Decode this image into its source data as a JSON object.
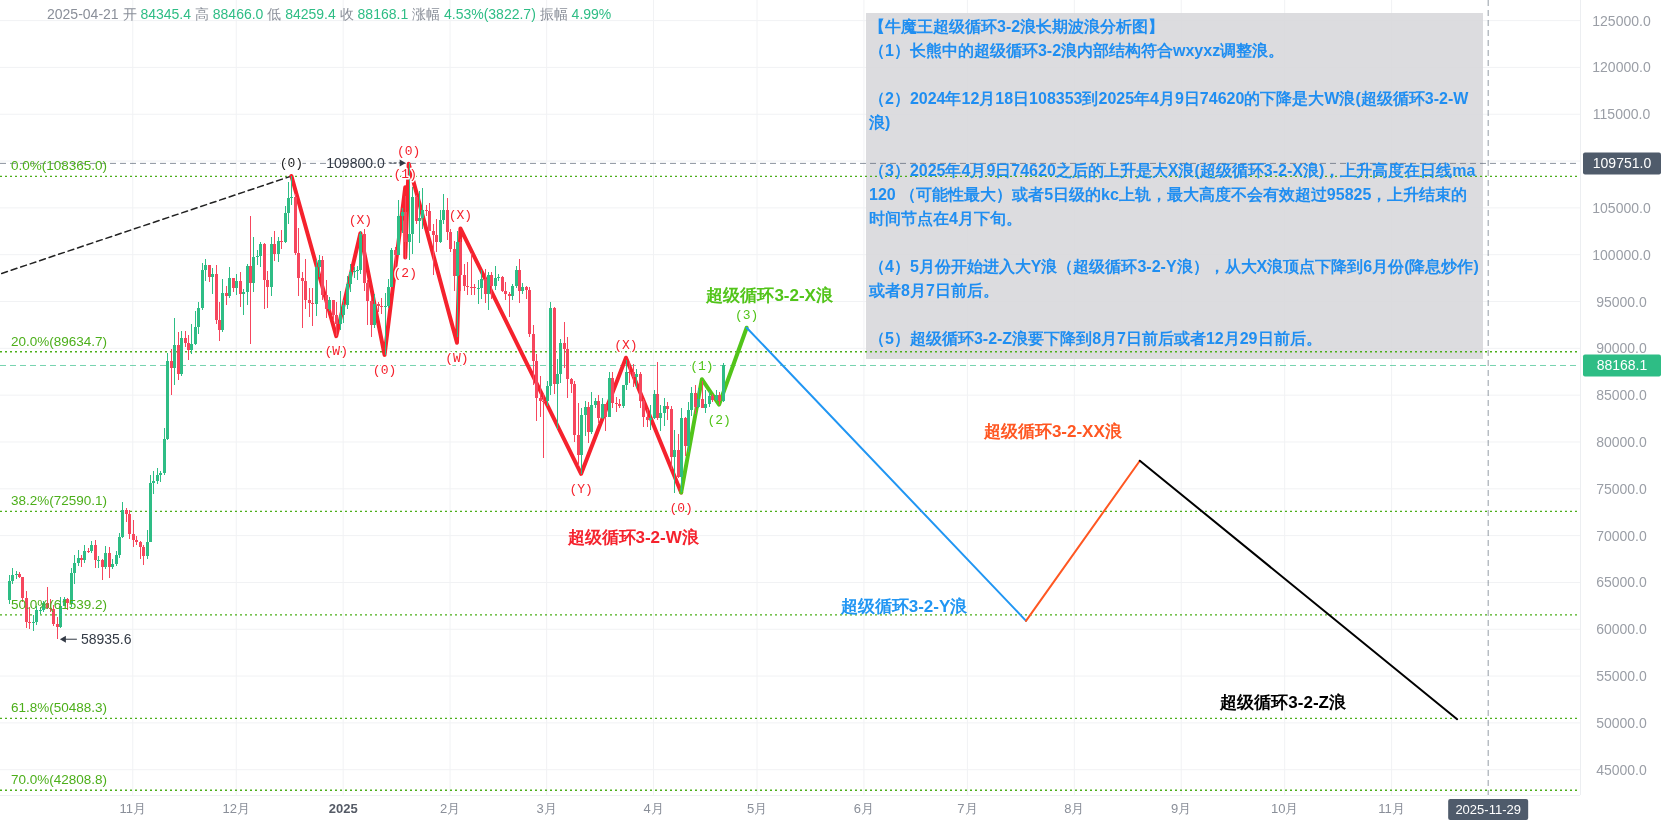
{
  "chart_data": {
    "type": "candlestick",
    "title": "【牛魔王超级循环3-2浪长期波浪分析图】",
    "subtitle": "2025-04-21 开 84345.4 高 88466.0 低 84259.4 收 88168.1 涨幅 4.53%(3822.7) 振幅 4.99%",
    "xlim": [
      "2024-09-23T12:00",
      "2025-12-25T15:00"
    ],
    "ylim": [
      42300,
      127200
    ],
    "xticks": [
      {
        "value": "2024-11-01",
        "label": "11月"
      },
      {
        "value": "2024-12-01",
        "label": "12月"
      },
      {
        "value": "2025-01-01",
        "label": "2025"
      },
      {
        "value": "2025-02-01",
        "label": "2月"
      },
      {
        "value": "2025-03-01",
        "label": "3月"
      },
      {
        "value": "2025-04-01",
        "label": "4月"
      },
      {
        "value": "2025-05-01",
        "label": "5月"
      },
      {
        "value": "2025-06-01",
        "label": "6月"
      },
      {
        "value": "2025-07-01",
        "label": "7月"
      },
      {
        "value": "2025-08-01",
        "label": "8月"
      },
      {
        "value": "2025-09-01",
        "label": "9月"
      },
      {
        "value": "2025-10-01",
        "label": "10月"
      },
      {
        "value": "2025-11-01",
        "label": "11月"
      }
    ],
    "yticks": [
      {
        "value": 45000,
        "label": "45000.0"
      },
      {
        "value": 50000,
        "label": "50000.0"
      },
      {
        "value": 55000,
        "label": "55000.0"
      },
      {
        "value": 60000,
        "label": "60000.0"
      },
      {
        "value": 65000,
        "label": "65000.0"
      },
      {
        "value": 70000,
        "label": "70000.0"
      },
      {
        "value": 75000,
        "label": "75000.0"
      },
      {
        "value": 80000,
        "label": "80000.0"
      },
      {
        "value": 85000,
        "label": "85000.0"
      },
      {
        "value": 90000,
        "label": "90000.0"
      },
      {
        "value": 95000,
        "label": "95000.0"
      },
      {
        "value": 100000,
        "label": "100000.0"
      },
      {
        "value": 105000,
        "label": "105000.0"
      },
      {
        "value": 110000,
        "label": null
      },
      {
        "value": 115000,
        "label": "115000.0"
      },
      {
        "value": 120000,
        "label": "120000.0"
      },
      {
        "value": 125000,
        "label": "125000.0"
      }
    ],
    "grid": true,
    "series": [
      {
        "type": "candlestick",
        "color": "#2ebd85",
        "x": [
          "2024-09-26",
          "2024-09-27",
          "2024-09-28",
          "2024-10-03",
          "2024-10-04",
          "2024-10-05",
          "2024-10-06",
          "2024-10-11",
          "2024-10-12",
          "2024-10-14",
          "2024-10-15",
          "2024-10-16",
          "2024-10-18",
          "2024-10-20",
          "2024-10-22",
          "2024-10-24",
          "2024-10-26",
          "2024-10-27",
          "2024-10-28",
          "2024-10-29",
          "2024-11-05",
          "2024-11-06",
          "2024-11-07",
          "2024-11-08",
          "2024-11-09",
          "2024-11-10",
          "2024-11-11",
          "2024-11-13",
          "2024-11-15",
          "2024-11-18",
          "2024-11-19",
          "2024-11-20",
          "2024-11-21",
          "2024-11-22",
          "2024-11-24",
          "2024-11-27",
          "2024-11-29",
          "2024-12-01",
          "2024-12-03",
          "2024-12-04",
          "2024-12-06",
          "2024-12-07",
          "2024-12-08",
          "2024-12-11",
          "2024-12-13",
          "2024-12-15",
          "2024-12-16",
          "2024-12-17",
          "2024-12-24",
          "2024-12-25",
          "2024-12-28",
          "2024-12-31",
          "2025-01-01",
          "2025-01-02",
          "2025-01-03",
          "2025-01-04",
          "2025-01-05",
          "2025-01-06",
          "2025-01-10",
          "2025-01-13",
          "2025-01-14",
          "2025-01-15",
          "2025-01-17",
          "2025-01-18",
          "2025-01-20",
          "2025-01-21",
          "2025-01-23",
          "2025-01-24",
          "2025-01-29",
          "2025-01-30",
          "2025-02-03",
          "2025-02-09",
          "2025-02-10",
          "2025-02-12",
          "2025-02-14",
          "2025-02-15",
          "2025-02-19",
          "2025-02-20",
          "2025-02-22",
          "2025-03-01",
          "2025-03-02",
          "2025-03-04",
          "2025-03-05",
          "2025-03-11",
          "2025-03-12",
          "2025-03-14",
          "2025-03-15",
          "2025-03-17",
          "2025-03-19",
          "2025-03-23",
          "2025-03-24",
          "2025-03-27",
          "2025-03-31",
          "2025-04-01",
          "2025-04-03",
          "2025-04-04",
          "2025-04-07",
          "2025-04-09",
          "2025-04-11",
          "2025-04-12",
          "2025-04-14",
          "2025-04-16",
          "2025-04-17",
          "2025-04-19",
          "2025-04-21"
        ],
        "ohlc": [
          [
            63150,
            65800,
            62670,
            65180
          ],
          [
            65180,
            66500,
            64800,
            65790
          ],
          [
            65790,
            66260,
            65420,
            65890
          ],
          [
            60650,
            61480,
            59830,
            60750
          ],
          [
            60750,
            62480,
            60460,
            62080
          ],
          [
            62080,
            62370,
            61680,
            62090
          ],
          [
            62090,
            62980,
            61800,
            62820
          ],
          [
            60270,
            63420,
            60090,
            62450
          ],
          [
            62450,
            63480,
            62440,
            63190
          ],
          [
            62850,
            66500,
            62430,
            66050
          ],
          [
            66050,
            67950,
            64800,
            67040
          ],
          [
            67040,
            68420,
            66750,
            67610
          ],
          [
            67400,
            68980,
            67120,
            68400
          ],
          [
            68360,
            69400,
            68100,
            69000
          ],
          [
            67370,
            67830,
            66570,
            67380
          ],
          [
            66650,
            68850,
            66480,
            68160
          ],
          [
            66640,
            67450,
            66430,
            67010
          ],
          [
            67010,
            68340,
            66790,
            67930
          ],
          [
            67930,
            70270,
            67600,
            69900
          ],
          [
            69900,
            73620,
            69730,
            72720
          ],
          [
            67800,
            70580,
            67450,
            69340
          ],
          [
            69340,
            76460,
            69320,
            75600
          ],
          [
            75600,
            76850,
            74420,
            75860
          ],
          [
            75860,
            77200,
            75560,
            76500
          ],
          [
            76500,
            76950,
            75770,
            76680
          ],
          [
            76680,
            81500,
            76490,
            80370
          ],
          [
            80370,
            89530,
            80220,
            88650
          ],
          [
            87950,
            93270,
            86120,
            90400
          ],
          [
            87300,
            91850,
            87070,
            91060
          ],
          [
            89800,
            92640,
            89380,
            90460
          ],
          [
            90460,
            94000,
            90370,
            92300
          ],
          [
            92300,
            94900,
            91500,
            94290
          ],
          [
            94290,
            99080,
            94100,
            98330
          ],
          [
            98330,
            99590,
            97180,
            98890
          ],
          [
            97670,
            98560,
            95750,
            97900
          ],
          [
            91960,
            97360,
            91790,
            95860
          ],
          [
            95640,
            98690,
            95370,
            97460
          ],
          [
            96410,
            97900,
            95700,
            97190
          ],
          [
            95840,
            96300,
            93580,
            96000
          ],
          [
            96000,
            99000,
            94660,
            98770
          ],
          [
            96950,
            101900,
            95980,
            99740
          ],
          [
            99740,
            100550,
            98950,
            99830
          ],
          [
            99830,
            101350,
            98700,
            101110
          ],
          [
            96590,
            101890,
            95640,
            101120
          ],
          [
            100040,
            101900,
            99200,
            101420
          ],
          [
            101400,
            105250,
            101230,
            104450
          ],
          [
            104450,
            107780,
            103320,
            106060
          ],
          [
            106060,
            108365,
            105320,
            106140
          ],
          [
            94690,
            99400,
            93440,
            98680
          ],
          [
            98680,
            99960,
            97600,
            99400
          ],
          [
            94160,
            95520,
            94000,
            95160
          ],
          [
            92640,
            96150,
            92000,
            93570
          ],
          [
            93570,
            95150,
            92750,
            94590
          ],
          [
            94590,
            97770,
            94200,
            96880
          ],
          [
            96880,
            98960,
            96030,
            98110
          ],
          [
            98110,
            98730,
            97520,
            98240
          ],
          [
            98240,
            98810,
            97250,
            98360
          ],
          [
            98360,
            102480,
            97900,
            102240
          ],
          [
            92480,
            95840,
            92200,
            94700
          ],
          [
            94510,
            95900,
            89260,
            94520
          ],
          [
            94520,
            97370,
            94300,
            96530
          ],
          [
            96530,
            100680,
            96500,
            100500
          ],
          [
            99990,
            105870,
            99950,
            104080
          ],
          [
            104080,
            104990,
            102280,
            104560
          ],
          [
            101330,
            109800,
            99480,
            102260
          ],
          [
            102260,
            107240,
            100110,
            106140
          ],
          [
            103650,
            106850,
            101250,
            103960
          ],
          [
            103960,
            107120,
            102750,
            104820
          ],
          [
            101330,
            104800,
            101290,
            103730
          ],
          [
            103730,
            106460,
            103320,
            104730
          ],
          [
            97700,
            102500,
            91230,
            101330
          ],
          [
            96440,
            97320,
            94750,
            96460
          ],
          [
            96460,
            98340,
            95260,
            97430
          ],
          [
            95780,
            98120,
            94090,
            97870
          ],
          [
            96620,
            98820,
            96250,
            97500
          ],
          [
            97500,
            97970,
            97230,
            97570
          ],
          [
            95540,
            96900,
            95150,
            96630
          ],
          [
            96630,
            98800,
            96420,
            98330
          ],
          [
            96120,
            96980,
            95790,
            96580
          ],
          [
            84350,
            86560,
            83820,
            86030
          ],
          [
            86030,
            95000,
            85050,
            94270
          ],
          [
            86220,
            88910,
            81390,
            87220
          ],
          [
            87220,
            91000,
            86330,
            90620
          ],
          [
            78600,
            83620,
            76610,
            82860
          ],
          [
            82860,
            84360,
            80670,
            83720
          ],
          [
            81070,
            85310,
            80800,
            83970
          ],
          [
            83970,
            84670,
            83640,
            84340
          ],
          [
            82580,
            84750,
            82460,
            84010
          ],
          [
            82720,
            87450,
            82620,
            86850
          ],
          [
            83830,
            86100,
            83600,
            86050
          ],
          [
            86050,
            88760,
            85540,
            87500
          ],
          [
            86900,
            87790,
            85800,
            87220
          ],
          [
            82390,
            83940,
            81280,
            82550
          ],
          [
            82550,
            85580,
            82430,
            85160
          ],
          [
            82520,
            83930,
            81160,
            83100
          ],
          [
            83100,
            84720,
            81670,
            83860
          ],
          [
            78370,
            81240,
            74510,
            79140
          ],
          [
            76270,
            83590,
            74620,
            82580
          ],
          [
            79600,
            84300,
            78970,
            83400
          ],
          [
            83400,
            85900,
            82770,
            85280
          ],
          [
            83740,
            85800,
            83680,
            84540
          ],
          [
            83670,
            85500,
            83100,
            84030
          ],
          [
            84030,
            85470,
            83740,
            84920
          ],
          [
            84450,
            85600,
            84330,
            85060
          ],
          [
            84345.4,
            88466.0,
            84259.4,
            88168.1
          ]
        ]
      },
      {
        "type": "candlestick",
        "color": "#f6465d",
        "x": [
          "2024-09-29",
          "2024-09-30",
          "2024-10-01",
          "2024-10-02",
          "2024-10-07",
          "2024-10-08",
          "2024-10-09",
          "2024-10-10",
          "2024-10-13",
          "2024-10-17",
          "2024-10-19",
          "2024-10-21",
          "2024-10-23",
          "2024-10-25",
          "2024-10-30",
          "2024-10-31",
          "2024-11-01",
          "2024-11-02",
          "2024-11-03",
          "2024-11-04",
          "2024-11-12",
          "2024-11-14",
          "2024-11-16",
          "2024-11-17",
          "2024-11-23",
          "2024-11-25",
          "2024-11-26",
          "2024-11-28",
          "2024-11-30",
          "2024-12-02",
          "2024-12-05",
          "2024-12-09",
          "2024-12-10",
          "2024-12-12",
          "2024-12-14",
          "2024-12-18",
          "2024-12-19",
          "2024-12-20",
          "2024-12-21",
          "2024-12-22",
          "2024-12-23",
          "2024-12-26",
          "2024-12-27",
          "2024-12-29",
          "2024-12-30",
          "2025-01-07",
          "2025-01-08",
          "2025-01-09",
          "2025-01-11",
          "2025-01-12",
          "2025-01-16",
          "2025-01-19",
          "2025-01-22",
          "2025-01-25",
          "2025-01-26",
          "2025-01-27",
          "2025-01-28",
          "2025-01-31",
          "2025-02-01",
          "2025-02-02",
          "2025-02-04",
          "2025-02-05",
          "2025-02-06",
          "2025-02-07",
          "2025-02-08",
          "2025-02-11",
          "2025-02-13",
          "2025-02-16",
          "2025-02-17",
          "2025-02-18",
          "2025-02-21",
          "2025-02-23",
          "2025-02-24",
          "2025-02-25",
          "2025-02-26",
          "2025-02-27",
          "2025-02-28",
          "2025-03-03",
          "2025-03-06",
          "2025-03-07",
          "2025-03-08",
          "2025-03-09",
          "2025-03-10",
          "2025-03-13",
          "2025-03-16",
          "2025-03-18",
          "2025-03-20",
          "2025-03-21",
          "2025-03-22",
          "2025-03-25",
          "2025-03-26",
          "2025-03-28",
          "2025-03-29",
          "2025-03-30",
          "2025-04-02",
          "2025-04-05",
          "2025-04-06",
          "2025-04-08",
          "2025-04-10",
          "2025-04-13",
          "2025-04-15",
          "2025-04-18",
          "2025-04-20"
        ],
        "ohlc": [
          [
            65890,
            66080,
            65450,
            65600
          ],
          [
            65600,
            65620,
            62860,
            63330
          ],
          [
            63330,
            64130,
            60160,
            60800
          ],
          [
            60800,
            62390,
            59990,
            60650
          ],
          [
            62820,
            64480,
            62130,
            62220
          ],
          [
            62220,
            63200,
            61860,
            62130
          ],
          [
            62130,
            62540,
            60300,
            60580
          ],
          [
            60580,
            61320,
            58935.6,
            60270
          ],
          [
            63190,
            63290,
            62050,
            62850
          ],
          [
            67610,
            67940,
            66670,
            67400
          ],
          [
            68400,
            68690,
            68110,
            68360
          ],
          [
            69000,
            69500,
            66570,
            67370
          ],
          [
            67380,
            67470,
            65260,
            66650
          ],
          [
            68160,
            68770,
            65520,
            66640
          ],
          [
            72720,
            72960,
            71440,
            72340
          ],
          [
            72340,
            72700,
            69690,
            70220
          ],
          [
            70220,
            71630,
            68820,
            69500
          ],
          [
            69500,
            70000,
            69020,
            69300
          ],
          [
            69300,
            69400,
            67480,
            68740
          ],
          [
            68740,
            69000,
            66840,
            67800
          ],
          [
            88650,
            89950,
            85070,
            87950
          ],
          [
            90400,
            91790,
            86670,
            87300
          ],
          [
            91060,
            91800,
            90090,
            90570
          ],
          [
            90570,
            91450,
            88720,
            89800
          ],
          [
            98890,
            98900,
            97130,
            97670
          ],
          [
            97900,
            98870,
            92600,
            93010
          ],
          [
            93010,
            94970,
            90790,
            91960
          ],
          [
            95860,
            96650,
            94610,
            95640
          ],
          [
            97460,
            97460,
            96050,
            96410
          ],
          [
            97190,
            98150,
            94400,
            95840
          ],
          [
            98770,
            104090,
            90500,
            96950
          ],
          [
            101110,
            101220,
            94150,
            97320
          ],
          [
            97320,
            98270,
            94260,
            96590
          ],
          [
            101120,
            102540,
            99310,
            100040
          ],
          [
            101420,
            102650,
            100600,
            101400
          ],
          [
            106140,
            106470,
            100000,
            100200
          ],
          [
            100200,
            102800,
            95590,
            97460
          ],
          [
            97460,
            98150,
            92180,
            97220
          ],
          [
            97220,
            99540,
            94200,
            95190
          ],
          [
            95190,
            96420,
            93400,
            94880
          ],
          [
            94880,
            96400,
            92400,
            94690
          ],
          [
            99400,
            99880,
            95150,
            95650
          ],
          [
            95650,
            97300,
            93250,
            94160
          ],
          [
            95160,
            95200,
            92880,
            93530
          ],
          [
            93530,
            94900,
            91320,
            92640
          ],
          [
            102240,
            102720,
            96130,
            96950
          ],
          [
            96950,
            97260,
            92500,
            95040
          ],
          [
            95040,
            95350,
            91200,
            92480
          ],
          [
            94700,
            95000,
            93840,
            94570
          ],
          [
            94570,
            95400,
            93700,
            94510
          ],
          [
            100500,
            100870,
            97360,
            99990
          ],
          [
            104560,
            106300,
            99550,
            101330
          ],
          [
            106140,
            106330,
            103300,
            103650
          ],
          [
            104820,
            105280,
            104110,
            104710
          ],
          [
            104710,
            105500,
            102500,
            102570
          ],
          [
            102570,
            103250,
            97780,
            102060
          ],
          [
            102060,
            103780,
            100270,
            101330
          ],
          [
            104730,
            106010,
            101560,
            102430
          ],
          [
            102430,
            102750,
            100280,
            100640
          ],
          [
            100640,
            101460,
            96150,
            97700
          ],
          [
            101330,
            101730,
            96150,
            97870
          ],
          [
            97870,
            99000,
            96150,
            96610
          ],
          [
            96610,
            99200,
            95680,
            96550
          ],
          [
            96550,
            100140,
            95650,
            96500
          ],
          [
            96500,
            96880,
            95690,
            96440
          ],
          [
            97430,
            98500,
            94860,
            95780
          ],
          [
            97870,
            98120,
            95220,
            96620
          ],
          [
            97570,
            97730,
            96050,
            96120
          ],
          [
            96120,
            97050,
            95200,
            95770
          ],
          [
            95770,
            96000,
            93380,
            95540
          ],
          [
            98330,
            99500,
            94870,
            96120
          ],
          [
            96580,
            96670,
            95230,
            96270
          ],
          [
            96270,
            96500,
            91180,
            91550
          ],
          [
            91550,
            92500,
            86050,
            88700
          ],
          [
            88700,
            89390,
            82260,
            84700
          ],
          [
            84700,
            87060,
            82720,
            84370
          ],
          [
            84370,
            85120,
            78260,
            84350
          ],
          [
            94270,
            94420,
            85120,
            86220
          ],
          [
            90620,
            92810,
            87850,
            89960
          ],
          [
            89960,
            91220,
            84670,
            86740
          ],
          [
            86740,
            86880,
            85250,
            86150
          ],
          [
            86150,
            86500,
            80000,
            80730
          ],
          [
            80730,
            84120,
            77460,
            78600
          ],
          [
            83720,
            84300,
            79940,
            81070
          ],
          [
            84340,
            85000,
            82020,
            82580
          ],
          [
            84010,
            84020,
            81130,
            82720
          ],
          [
            86850,
            87440,
            83650,
            84170
          ],
          [
            84170,
            84780,
            83180,
            84040
          ],
          [
            84040,
            84570,
            83630,
            83830
          ],
          [
            87500,
            88540,
            86300,
            87420
          ],
          [
            87420,
            88290,
            85860,
            86900
          ],
          [
            87220,
            87520,
            83650,
            84350
          ],
          [
            84350,
            84580,
            81650,
            82630
          ],
          [
            82630,
            83500,
            81570,
            82390
          ],
          [
            85160,
            88500,
            82320,
            82520
          ],
          [
            83860,
            84250,
            82370,
            83500
          ],
          [
            83500,
            83820,
            77150,
            78370
          ],
          [
            79140,
            80870,
            76190,
            76270
          ],
          [
            82580,
            82700,
            78450,
            79600
          ],
          [
            85280,
            86100,
            83030,
            83740
          ],
          [
            84540,
            86500,
            83600,
            83670
          ],
          [
            84920,
            85100,
            84300,
            84450
          ],
          [
            85060,
            85320,
            83950,
            84345.4
          ]
        ]
      },
      {
        "type": "line",
        "color": "#222222",
        "line_style": "dashed",
        "x": [
          "2024-09-24",
          "2024-12-17"
        ],
        "values": [
          98000,
          108400
        ]
      },
      {
        "type": "line",
        "name": "超级循环3-2-W浪",
        "color": "#f5222d",
        "x": [
          "2024-12-17",
          "2024-12-30",
          "2025-01-06",
          "2025-01-13",
          "2025-01-19",
          "2025-01-19",
          "2025-01-20",
          "2025-02-03",
          "2025-02-04",
          "2025-03-11",
          "2025-03-24",
          "2025-04-09"
        ],
        "values": [
          108400,
          91300,
          102300,
          89300,
          107200,
          99700,
          109700,
          90600,
          102800,
          76600,
          89000,
          74600
        ]
      },
      {
        "type": "line",
        "name": "超级循环3-2-X浪",
        "color": "#52c41a",
        "x": [
          "2025-04-09",
          "2025-04-15",
          "2025-04-20",
          "2025-04-28"
        ],
        "values": [
          74600,
          86700,
          84000,
          92200
        ]
      },
      {
        "type": "line",
        "name": "超级循环3-2-Y浪",
        "color": "#2196f3",
        "x": [
          "2025-04-28",
          "2025-07-18"
        ],
        "values": [
          92200,
          60900
        ]
      },
      {
        "type": "line",
        "name": "超级循环3-2-XX浪",
        "color": "#ff5722",
        "x": [
          "2025-07-18",
          "2025-08-20"
        ],
        "values": [
          60900,
          78000
        ]
      },
      {
        "type": "line",
        "name": "超级循环3-2-Z浪",
        "color": "#000000",
        "x": [
          "2025-08-20",
          "2025-11-20"
        ],
        "values": [
          78000,
          50400
        ]
      }
    ],
    "ref_lines": [
      {
        "axis": "y",
        "value": 108365.0,
        "label": "0.0%(108365.0)",
        "color": "#4caf1a",
        "line_style": "dotted"
      },
      {
        "axis": "y",
        "value": 89634.7,
        "label": "20.0%(89634.7)",
        "color": "#4caf1a",
        "line_style": "dotted"
      },
      {
        "axis": "y",
        "value": 72590.1,
        "label": "38.2%(72590.1)",
        "color": "#4caf1a",
        "line_style": "dotted"
      },
      {
        "axis": "y",
        "value": 61539.2,
        "label": "50.0%(61539.2)",
        "color": "#4caf1a",
        "line_style": "dotted"
      },
      {
        "axis": "y",
        "value": 50488.3,
        "label": "61.8%(50488.3)",
        "color": "#4caf1a",
        "line_style": "dotted"
      },
      {
        "axis": "y",
        "value": 42808.8,
        "label": "70.0%(42808.8)",
        "color": "#4caf1a",
        "line_style": "dotted"
      },
      {
        "axis": "y",
        "value": 109751.0,
        "label": "109751.0",
        "color": "#4f5b6b",
        "line_style": "dashed"
      },
      {
        "axis": "y",
        "value": 88168.1,
        "label": "88168.1",
        "color": "#2ebd85",
        "line_style": "dashed"
      },
      {
        "axis": "x",
        "value": "2025-11-29",
        "label": "2025-11-29",
        "color": "#4f5b6b",
        "line_style": "dashed"
      }
    ],
    "annotations": [
      "（1）长熊中的超级循环3-2浪内部结构符合wxyxz调整浪。",
      "（2）2024年12月18日108353到2025年4月9日74620的下降是大W浪(超级循环3-2-W浪)",
      "（3）2025年4月9日74620之后的上升是大X浪(超级循环3-2-X浪)，上升高度在日线ma 120 （可能性最大）或者5日级的kc上轨，最大高度不会有效超过95825，上升结束的时间节点在4月下旬。",
      "（4）5月份开始进入大Y浪（超级循环3-2-Y浪），从大X浪顶点下降到6月份(降息炒作)或者8月7日前后。",
      "（5）超级循环3-2-Z浪要下降到8月7日前后或者12月29日前后。",
      {
        "text": "(0)",
        "x": "2024-12-17",
        "y": 108400
      },
      {
        "text": "(W)",
        "x": "2024-12-30",
        "y": 91300
      },
      {
        "text": "(X)",
        "x": "2025-01-06",
        "y": 102300
      },
      {
        "text": "(0)",
        "x": "2025-01-13",
        "y": 89300
      },
      {
        "text": "(1)",
        "x": "2025-01-19",
        "y": 107200
      },
      {
        "text": "(2)",
        "x": "2025-01-19",
        "y": 99700
      },
      {
        "text": "(0)",
        "x": "2025-01-20",
        "y": 109700
      },
      {
        "text": "(W)",
        "x": "2025-02-03",
        "y": 90600
      },
      {
        "text": "(X)",
        "x": "2025-02-04",
        "y": 102800
      },
      {
        "text": "(Y)",
        "x": "2025-03-11",
        "y": 76600
      },
      {
        "text": "(X)",
        "x": "2025-03-24",
        "y": 89000
      },
      {
        "text": "(0)",
        "x": "2025-04-09",
        "y": 74600
      },
      {
        "text": "(1)",
        "x": "2025-04-15",
        "y": 86700
      },
      {
        "text": "(2)",
        "x": "2025-04-20",
        "y": 84000
      },
      {
        "text": "(3)",
        "x": "2025-04-28",
        "y": 92200
      },
      {
        "text": "109800.0",
        "x": "2025-01-20",
        "y": 109800
      },
      {
        "text": "58935.6",
        "x": "2024-10-10",
        "y": 58935.6
      }
    ]
  }
}
